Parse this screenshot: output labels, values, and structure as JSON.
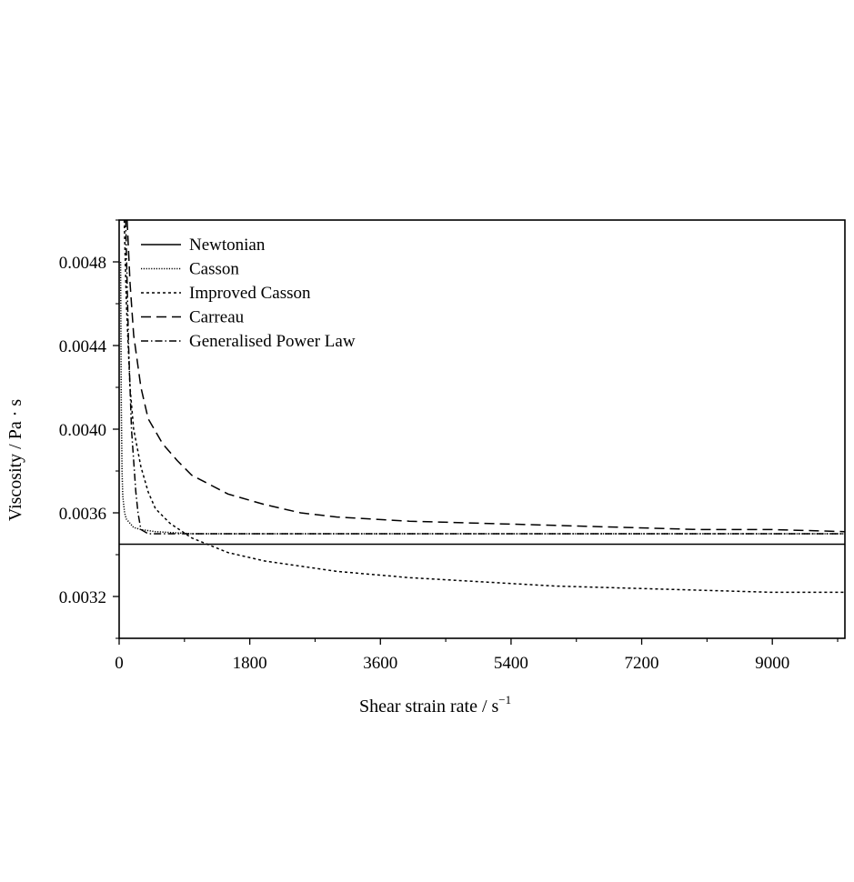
{
  "chart_data": {
    "type": "line",
    "xlabel": "Shear strain rate / s",
    "xlabel_exponent": "−1",
    "ylabel": "Viscosity / Pa · s",
    "xlim": [
      0,
      10000
    ],
    "ylim": [
      0.003,
      0.005
    ],
    "x_ticks": [
      0,
      1800,
      3600,
      5400,
      7200,
      9000
    ],
    "x_tick_labels": [
      "0",
      "1800",
      "3600",
      "5400",
      "7200",
      "9000"
    ],
    "y_ticks": [
      0.0032,
      0.0036,
      0.004,
      0.0044,
      0.0048
    ],
    "y_tick_labels": [
      "0.0032",
      "0.0036",
      "0.0040",
      "0.0044",
      "0.0048"
    ],
    "grid": false,
    "legend_position": "top-left",
    "series": [
      {
        "name": "Newtonian",
        "dash": "solid",
        "x": [
          0,
          10000
        ],
        "y": [
          0.00345,
          0.00345
        ]
      },
      {
        "name": "Casson",
        "dash": "dotted",
        "x": [
          20,
          30,
          40,
          50,
          75,
          100,
          150,
          200,
          300,
          500,
          1000,
          2000,
          4000,
          7000,
          10000
        ],
        "y": [
          0.0048,
          0.0041,
          0.0038,
          0.00368,
          0.0036,
          0.00357,
          0.00355,
          0.00353,
          0.00352,
          0.00351,
          0.0035,
          0.0035,
          0.0035,
          0.0035,
          0.0035
        ]
      },
      {
        "name": "Improved Casson",
        "dash": "short-dash",
        "x": [
          70,
          100,
          150,
          200,
          300,
          400,
          500,
          700,
          1000,
          1500,
          2000,
          3000,
          4000,
          5000,
          6000,
          7000,
          8000,
          9000,
          10000
        ],
        "y": [
          0.005,
          0.0046,
          0.0042,
          0.004,
          0.00382,
          0.0037,
          0.00362,
          0.00355,
          0.00348,
          0.00341,
          0.00337,
          0.00332,
          0.00329,
          0.00327,
          0.00325,
          0.00324,
          0.00323,
          0.00322,
          0.00322
        ]
      },
      {
        "name": "Carreau",
        "dash": "long-dash",
        "x": [
          110,
          150,
          200,
          300,
          400,
          600,
          800,
          1000,
          1500,
          2000,
          2500,
          3000,
          4000,
          5000,
          6000,
          7000,
          8000,
          9000,
          10000
        ],
        "y": [
          0.005,
          0.0047,
          0.00445,
          0.0042,
          0.00405,
          0.00393,
          0.00385,
          0.00378,
          0.00369,
          0.00364,
          0.0036,
          0.00358,
          0.00356,
          0.00355,
          0.00354,
          0.00353,
          0.00352,
          0.00352,
          0.00351
        ]
      },
      {
        "name": "Generalised Power Law",
        "dash": "dash-dot",
        "x": [
          90,
          110,
          130,
          150,
          170,
          200,
          230,
          260,
          300,
          400,
          600,
          1000,
          3000,
          6000,
          10000
        ],
        "y": [
          0.005,
          0.0047,
          0.0044,
          0.0042,
          0.004,
          0.00385,
          0.0037,
          0.0036,
          0.00352,
          0.0035,
          0.0035,
          0.0035,
          0.0035,
          0.0035,
          0.0035
        ]
      }
    ]
  }
}
